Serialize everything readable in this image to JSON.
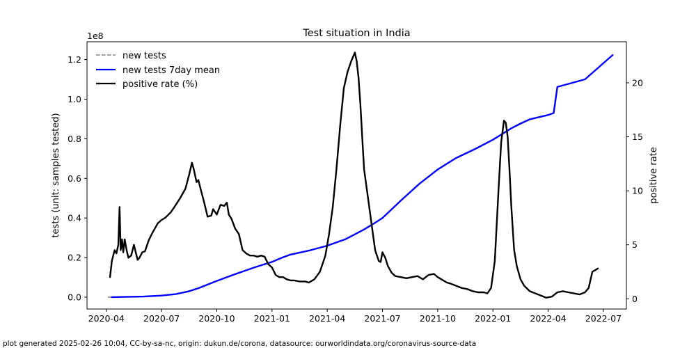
{
  "chart_data": {
    "type": "line",
    "title": "Test situation in India",
    "x_ticks": [
      "2020-04",
      "2020-07",
      "2020-10",
      "2021-01",
      "2021-04",
      "2021-07",
      "2021-10",
      "2022-01",
      "2022-04",
      "2022-07"
    ],
    "x_tick_months": [
      3,
      6,
      9,
      12,
      15,
      18,
      21,
      24,
      27,
      30
    ],
    "xlim_months": [
      1.95,
      31.25
    ],
    "left_axis": {
      "ylabel": "tests (unit: samples tested)",
      "offset_text": "1e8",
      "ylim": [
        -0.06,
        1.29
      ],
      "ticks": [
        0.0,
        0.2,
        0.4,
        0.6,
        0.8,
        1.0,
        1.2
      ],
      "tick_labels": [
        "0.0",
        "0.2",
        "0.4",
        "0.6",
        "0.8",
        "1.0",
        "1.2"
      ]
    },
    "right_axis": {
      "ylabel": "positive rate",
      "ylim": [
        -0.95,
        23.8
      ],
      "ticks": [
        0,
        5,
        10,
        15,
        20
      ],
      "tick_labels": [
        "0",
        "5",
        "10",
        "15",
        "20"
      ]
    },
    "legend": {
      "placement": "top-left",
      "entries": [
        "new tests",
        "new tests 7day mean",
        "positive rate (%)"
      ]
    },
    "series": [
      {
        "name": "new tests",
        "axis": "left",
        "color": "#808080",
        "style": "dashed",
        "x": [
          3.1,
          3.35
        ],
        "y": [
          0.0,
          0.0
        ]
      },
      {
        "name": "new tests 7day mean",
        "axis": "left",
        "color": "#0000ff",
        "style": "solid",
        "x": [
          3.3,
          4.0,
          5.0,
          6.0,
          6.8,
          7.5,
          8.0,
          9.0,
          10.0,
          11.0,
          12.0,
          12.5,
          13.0,
          14.0,
          15.0,
          16.0,
          17.0,
          17.5,
          18.0,
          19.0,
          20.0,
          21.0,
          22.0,
          23.0,
          24.0,
          25.0,
          25.5,
          26.0,
          27.0,
          27.3,
          27.5,
          29.0,
          30.5
        ],
        "y": [
          0.0,
          0.001,
          0.003,
          0.008,
          0.016,
          0.03,
          0.045,
          0.082,
          0.116,
          0.149,
          0.178,
          0.198,
          0.215,
          0.235,
          0.26,
          0.293,
          0.342,
          0.37,
          0.4,
          0.488,
          0.572,
          0.645,
          0.703,
          0.747,
          0.795,
          0.853,
          0.877,
          0.898,
          0.92,
          0.93,
          1.062,
          1.1,
          1.223
        ]
      },
      {
        "name": "positive rate (%)",
        "axis": "right",
        "color": "#000000",
        "style": "solid",
        "x": [
          3.2,
          3.3,
          3.45,
          3.55,
          3.65,
          3.72,
          3.78,
          3.85,
          3.92,
          4.0,
          4.1,
          4.2,
          4.35,
          4.5,
          4.7,
          4.8,
          4.95,
          5.1,
          5.3,
          5.5,
          5.7,
          5.8,
          6.0,
          6.2,
          6.5,
          6.7,
          7.0,
          7.3,
          7.5,
          7.65,
          7.75,
          7.9,
          8.0,
          8.1,
          8.3,
          8.5,
          8.7,
          8.8,
          9.0,
          9.2,
          9.4,
          9.55,
          9.65,
          9.8,
          10.0,
          10.2,
          10.4,
          10.6,
          10.8,
          11.0,
          11.2,
          11.4,
          11.6,
          11.8,
          12.0,
          12.2,
          12.4,
          12.6,
          12.8,
          13.0,
          13.2,
          13.5,
          13.8,
          14.0,
          14.3,
          14.6,
          14.9,
          15.1,
          15.3,
          15.5,
          15.7,
          15.9,
          16.1,
          16.3,
          16.5,
          16.6,
          16.7,
          16.8,
          16.9,
          17.0,
          17.2,
          17.4,
          17.6,
          17.7,
          17.8,
          17.9,
          18.0,
          18.15,
          18.3,
          18.5,
          18.7,
          19.0,
          19.3,
          19.6,
          19.9,
          20.2,
          20.5,
          20.8,
          21.0,
          21.2,
          21.5,
          21.7,
          22.0,
          22.3,
          22.6,
          22.9,
          23.2,
          23.5,
          23.7,
          23.9,
          24.1,
          24.3,
          24.45,
          24.6,
          24.7,
          24.8,
          24.9,
          25.0,
          25.15,
          25.3,
          25.5,
          25.7,
          26.0,
          26.3,
          26.6,
          26.9,
          27.2,
          27.5,
          27.8,
          28.1,
          28.4,
          28.7,
          29.0,
          29.2,
          29.4,
          29.5,
          29.6,
          29.7
        ],
        "y": [
          2.0,
          3.5,
          4.5,
          4.2,
          5.0,
          8.5,
          4.5,
          5.5,
          4.3,
          5.5,
          4.5,
          3.8,
          4.0,
          5.0,
          3.6,
          3.8,
          4.3,
          4.4,
          5.4,
          6.1,
          6.7,
          7.0,
          7.3,
          7.5,
          8.0,
          8.5,
          9.3,
          10.2,
          11.5,
          12.6,
          12.0,
          10.8,
          11.0,
          10.3,
          9.0,
          7.6,
          7.7,
          8.3,
          7.8,
          8.7,
          8.6,
          8.9,
          7.8,
          7.4,
          6.5,
          6.0,
          4.5,
          4.2,
          4.0,
          4.0,
          3.9,
          4.0,
          3.9,
          3.2,
          2.9,
          2.2,
          2.0,
          2.0,
          1.8,
          1.7,
          1.7,
          1.6,
          1.6,
          1.5,
          1.8,
          2.5,
          4.0,
          6.0,
          8.5,
          12.0,
          16.0,
          19.5,
          21.0,
          22.0,
          22.8,
          22.0,
          20.5,
          18.0,
          15.0,
          12.0,
          9.5,
          7.0,
          4.5,
          4.0,
          3.5,
          3.4,
          4.3,
          3.8,
          3.0,
          2.4,
          2.1,
          2.0,
          1.9,
          2.0,
          2.1,
          1.8,
          2.2,
          2.3,
          2.0,
          1.8,
          1.5,
          1.4,
          1.2,
          1.0,
          0.9,
          0.7,
          0.6,
          0.6,
          0.5,
          1.0,
          3.5,
          10.0,
          14.5,
          16.5,
          16.3,
          15.0,
          12.0,
          8.5,
          4.5,
          3.0,
          1.8,
          1.2,
          0.7,
          0.5,
          0.3,
          0.1,
          0.2,
          0.6,
          0.7,
          0.6,
          0.5,
          0.4,
          0.6,
          1.0,
          2.5,
          2.6,
          2.7,
          2.8
        ]
      }
    ]
  },
  "footer": {
    "text": "plot generated 2025-02-26 10:04, CC-by-sa-nc, origin: dukun.de/corona, datasource: ourworldindata.org/coronavirus-source-data"
  }
}
